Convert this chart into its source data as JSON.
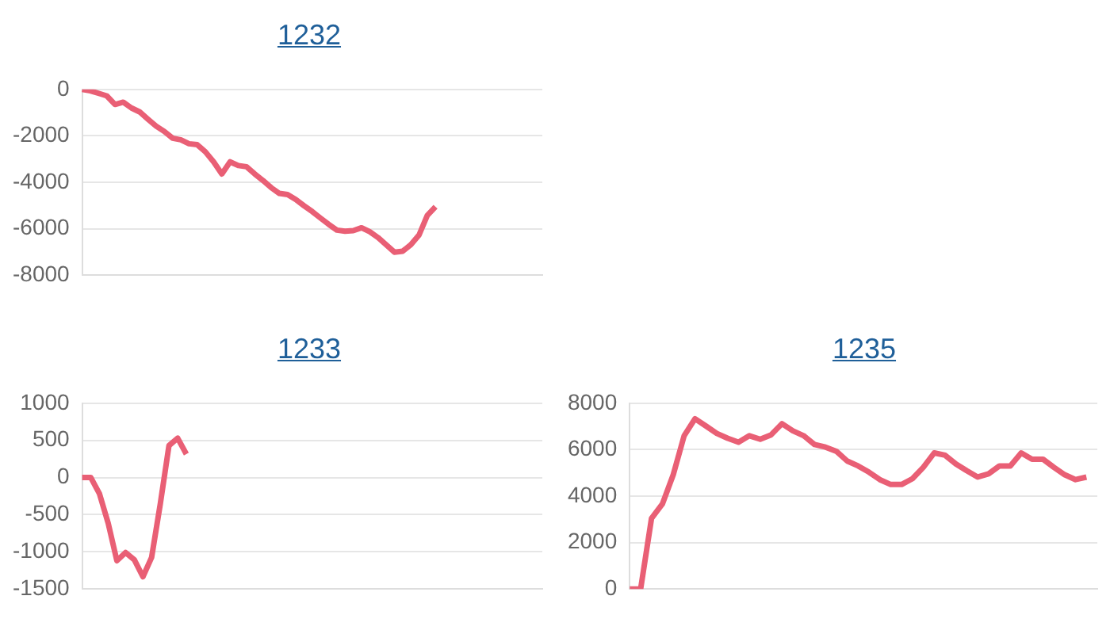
{
  "chart_data": [
    {
      "type": "line",
      "title": "1232",
      "categories": [
        null,
        null,
        null,
        null,
        null,
        null,
        null,
        null,
        null,
        null,
        null,
        null,
        null,
        null,
        null,
        null,
        null,
        null,
        null,
        null,
        null,
        null,
        null,
        null,
        null,
        null,
        null,
        null,
        null,
        null,
        null,
        null,
        null,
        null,
        null,
        null,
        null,
        null,
        null,
        null,
        null,
        null,
        null,
        null,
        null,
        null,
        null,
        null,
        null,
        null,
        null,
        null,
        null,
        null,
        null,
        null,
        null
      ],
      "series": [
        {
          "color": "#e95f75",
          "values": [
            0,
            -60,
            -170,
            -280,
            -650,
            -550,
            -800,
            -970,
            -1280,
            -1580,
            -1810,
            -2100,
            -2170,
            -2340,
            -2380,
            -2690,
            -3120,
            -3640,
            -3120,
            -3280,
            -3330,
            -3640,
            -3920,
            -4230,
            -4480,
            -4530,
            -4740,
            -5010,
            -5260,
            -5540,
            -5810,
            -6060,
            -6110,
            -6080,
            -5960,
            -6130,
            -6380,
            -6690,
            -7010,
            -6970,
            -6690,
            -6270,
            -5430,
            -5050,
            null,
            null,
            null,
            null,
            null,
            null,
            null,
            null,
            null,
            null,
            null,
            null,
            null
          ]
        }
      ],
      "ylim": [
        -8000,
        0
      ],
      "yticks": [
        -8000,
        -6000,
        -4000,
        -2000,
        0
      ],
      "grid": "y",
      "tick_labels": "y"
    },
    {
      "type": "line",
      "title": "1233",
      "categories": [
        null,
        null,
        null,
        null,
        null,
        null,
        null,
        null,
        null,
        null,
        null,
        null,
        null,
        null,
        null,
        null,
        null,
        null,
        null,
        null,
        null,
        null,
        null,
        null,
        null,
        null,
        null,
        null,
        null,
        null,
        null,
        null,
        null,
        null,
        null,
        null,
        null,
        null,
        null,
        null,
        null,
        null,
        null,
        null,
        null,
        null,
        null,
        null,
        null,
        null,
        null,
        null,
        null,
        null
      ],
      "series": [
        {
          "color": "#e95f75",
          "values": [
            0,
            0,
            -220,
            -615,
            -1120,
            -1010,
            -1105,
            -1335,
            -1075,
            -355,
            430,
            530,
            315,
            null,
            null,
            null,
            null,
            null,
            null,
            null,
            null,
            null,
            null,
            null,
            null,
            null,
            null,
            null,
            null,
            null,
            null,
            null,
            null,
            null,
            null,
            null,
            null,
            null,
            null,
            null,
            null,
            null,
            null,
            null,
            null,
            null,
            null,
            null,
            null,
            null,
            null,
            null,
            null,
            null
          ]
        }
      ],
      "ylim": [
        -1500,
        1000
      ],
      "yticks": [
        -1500,
        -1000,
        -500,
        0,
        500,
        1000
      ],
      "grid": "y",
      "tick_labels": "y"
    },
    {
      "type": "line",
      "title": "1235",
      "categories": [
        null,
        null,
        null,
        null,
        null,
        null,
        null,
        null,
        null,
        null,
        null,
        null,
        null,
        null,
        null,
        null,
        null,
        null,
        null,
        null,
        null,
        null,
        null,
        null,
        null,
        null,
        null,
        null,
        null,
        null,
        null,
        null,
        null,
        null,
        null,
        null,
        null,
        null,
        null,
        null,
        null,
        null,
        null,
        null
      ],
      "series": [
        {
          "color": "#e95f75",
          "values": [
            0,
            0,
            3040,
            3660,
            4920,
            6600,
            7330,
            7020,
            6700,
            6490,
            6320,
            6600,
            6450,
            6640,
            7120,
            6810,
            6600,
            6220,
            6110,
            5930,
            5510,
            5300,
            5030,
            4710,
            4500,
            4500,
            4750,
            5240,
            5860,
            5760,
            5380,
            5090,
            4820,
            4960,
            5300,
            5300,
            5860,
            5590,
            5590,
            5240,
            4920,
            4710,
            4820,
            null
          ]
        }
      ],
      "ylim": [
        0,
        8000
      ],
      "yticks": [
        0,
        2000,
        4000,
        6000,
        8000
      ],
      "grid": "y",
      "tick_labels": "y"
    }
  ]
}
